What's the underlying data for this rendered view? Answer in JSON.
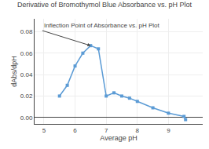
{
  "chart_data": {
    "type": "line",
    "title": "Derivative of Bromothymol Blue Absorbance vs. pH Plot",
    "xlabel": "Average pH",
    "ylabel": "dAbs/dpH",
    "x": [
      5.5,
      5.75,
      6.0,
      6.25,
      6.5,
      6.75,
      7.0,
      7.25,
      7.5,
      7.75,
      8.0,
      8.5,
      9.0,
      9.5,
      9.55
    ],
    "values": [
      0.02,
      0.03,
      0.048,
      0.06,
      0.067,
      0.064,
      0.02,
      0.023,
      0.02,
      0.018,
      0.015,
      0.009,
      0.004,
      0.001,
      -0.002
    ],
    "color": "#5b9bd5",
    "marker": "square",
    "annotations": [
      {
        "text": "Inflection Point of Absorbance vs. pH Plot",
        "x": 6.5,
        "y": 0.067,
        "text_x": 4.95,
        "text_y": 0.081
      }
    ],
    "xlim": [
      4.7,
      10.1
    ],
    "ylim": [
      -0.006,
      0.092
    ],
    "xticks": [
      5,
      6,
      7,
      8,
      9
    ],
    "yticks": [
      {
        "value": 0,
        "label": "0.00"
      },
      0.02,
      0.04,
      0.06,
      0.08
    ],
    "grid": true
  }
}
